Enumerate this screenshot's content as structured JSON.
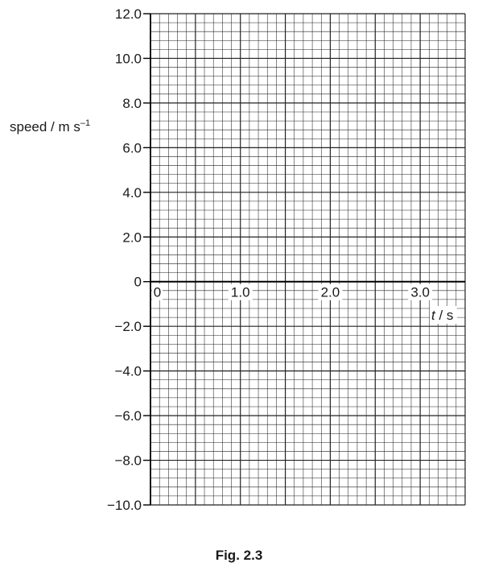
{
  "chart_data": {
    "type": "line",
    "title": "",
    "xlabel": "t / s",
    "ylabel": "speed / m s⁻¹",
    "xlim": [
      0,
      3.5
    ],
    "ylim": [
      -10.0,
      12.0
    ],
    "x_ticks": [
      0,
      1.0,
      2.0,
      3.0
    ],
    "x_tick_labels": [
      "0",
      "1.0",
      "2.0",
      "3.0"
    ],
    "y_ticks": [
      12.0,
      10.0,
      8.0,
      6.0,
      4.0,
      2.0,
      0,
      -2.0,
      -4.0,
      -6.0,
      -8.0,
      -10.0
    ],
    "y_tick_labels": [
      "12.0",
      "10.0",
      "8.0",
      "6.0",
      "4.0",
      "2.0",
      "0",
      "−2.0",
      "−4.0",
      "−6.0",
      "−8.0",
      "−10.0"
    ],
    "grid": true,
    "series": []
  },
  "labels": {
    "y_axis_title_main": "speed / m s",
    "y_axis_title_sup": "–1",
    "x_axis_title_italic": "t",
    "x_axis_title_rest": " / s",
    "figure_caption": "Fig. 2.3"
  }
}
